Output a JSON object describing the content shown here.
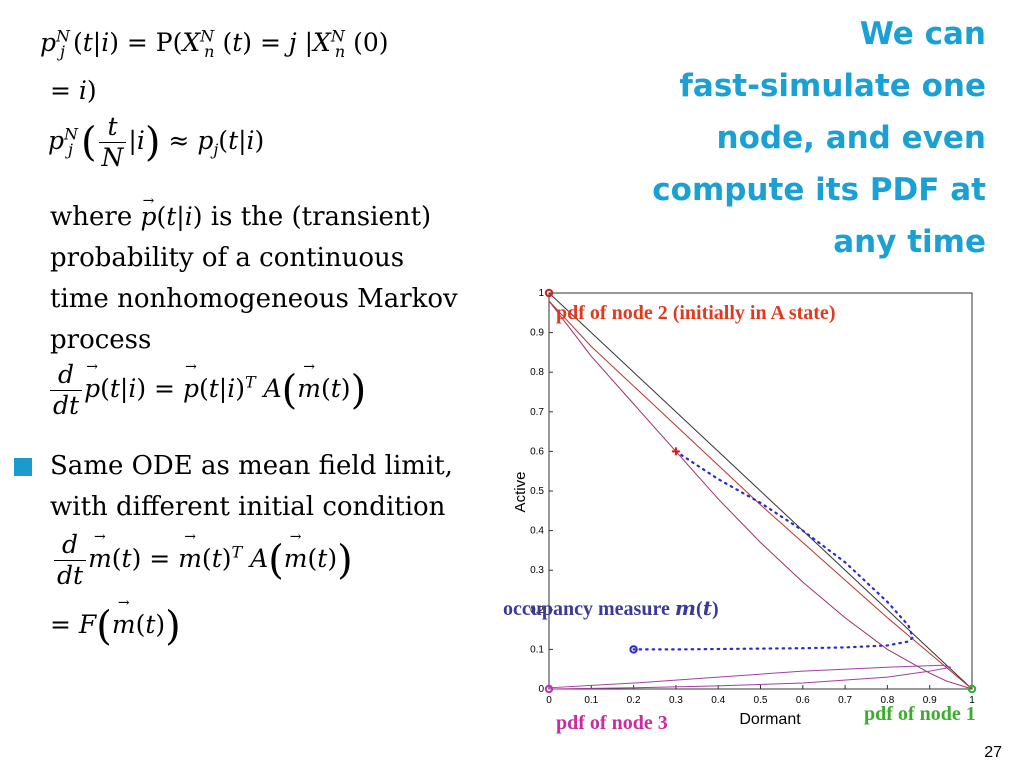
{
  "title": {
    "lines": [
      "We can",
      "fast-simulate one",
      "node, and even",
      "compute its PDF at",
      "any time"
    ],
    "color": "#1ba0d4"
  },
  "body": {
    "description_lines": [
      "where",
      "is the (transient)",
      "probability of a continuous",
      "time nonhomogeneous Markov",
      "process"
    ],
    "bullet": {
      "lines": [
        "Same ODE as mean field limit,",
        "with different initial condition"
      ],
      "marker_color": "#1b9bcc"
    }
  },
  "chart_labels": {
    "node2": "pdf of node 2 (initially in A state)",
    "occupancy": "occupancy measure",
    "node3": "pdf of node 3",
    "node1": "pdf of node 1"
  },
  "chart_data": {
    "type": "line",
    "xlabel": "Dormant",
    "ylabel": "Active",
    "xlim": [
      0,
      1
    ],
    "ylim": [
      0,
      1
    ],
    "x_ticks": [
      "0",
      "0.1",
      "0.2",
      "0.3",
      "0.4",
      "0.5",
      "0.6",
      "0.7",
      "0.8",
      "0.9",
      "1"
    ],
    "y_ticks": [
      "0",
      "0.1",
      "0.2",
      "0.3",
      "0.4",
      "0.5",
      "0.6",
      "0.7",
      "0.8",
      "0.9",
      "1"
    ],
    "series": [
      {
        "color": "#333333",
        "style": "solid",
        "x": [
          0,
          1
        ],
        "y": [
          1,
          0
        ]
      },
      {
        "color": "#c03030",
        "style": "solid",
        "x": [
          0,
          0.1,
          0.2,
          0.3,
          0.4,
          0.5,
          0.6,
          0.7,
          0.8,
          0.9,
          1
        ],
        "y": [
          0.98,
          0.865,
          0.765,
          0.665,
          0.565,
          0.465,
          0.37,
          0.275,
          0.18,
          0.09,
          0
        ]
      },
      {
        "color": "#a0306a",
        "style": "solid",
        "x": [
          0,
          0.1,
          0.2,
          0.3,
          0.4,
          0.5,
          0.6,
          0.7,
          0.8,
          0.9,
          0.94,
          1
        ],
        "y": [
          0.98,
          0.84,
          0.72,
          0.6,
          0.48,
          0.37,
          0.27,
          0.18,
          0.1,
          0.04,
          0.02,
          0
        ]
      },
      {
        "color": "#a040a0",
        "style": "solid",
        "x": [
          0,
          0.2,
          0.4,
          0.6,
          0.8,
          0.9,
          0.95,
          0.93,
          0.8,
          0.6,
          0.4,
          0.2,
          0
        ],
        "y": [
          0,
          0.003,
          0.008,
          0.015,
          0.03,
          0.045,
          0.055,
          0.06,
          0.055,
          0.045,
          0.03,
          0.015,
          0.003
        ]
      },
      {
        "color": "#2a2ad0",
        "style": "dotted",
        "x": [
          0.3,
          0.4,
          0.5,
          0.6,
          0.7,
          0.8,
          0.85,
          0.86,
          0.85,
          0.8,
          0.7,
          0.6,
          0.5,
          0.4,
          0.3,
          0.2
        ],
        "y": [
          0.6,
          0.53,
          0.47,
          0.4,
          0.32,
          0.22,
          0.16,
          0.13,
          0.12,
          0.11,
          0.105,
          0.103,
          0.102,
          0.101,
          0.1,
          0.1
        ]
      }
    ],
    "markers": [
      {
        "x": 0,
        "y": 1,
        "shape": "circle",
        "color": "#d02020"
      },
      {
        "x": 0.3,
        "y": 0.6,
        "shape": "plus",
        "color": "#d02020"
      },
      {
        "x": 0.2,
        "y": 0.1,
        "shape": "circle",
        "color": "#2a2ad0"
      },
      {
        "x": 0,
        "y": 0,
        "shape": "circle",
        "color": "#c030c0"
      },
      {
        "x": 1,
        "y": 0,
        "shape": "circle",
        "color": "#30b030"
      }
    ]
  },
  "page_number": "27"
}
